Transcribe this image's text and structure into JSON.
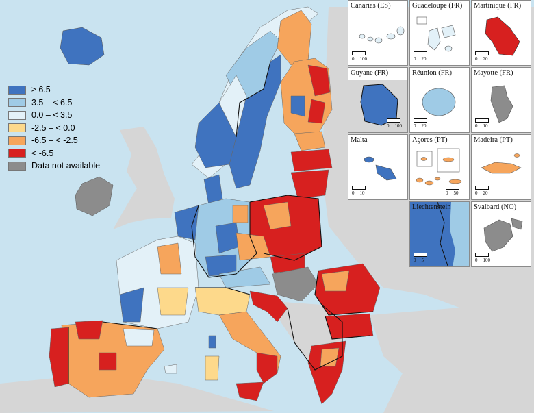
{
  "legend": {
    "items": [
      {
        "label": "≥ 6.5",
        "color": "#3f73bf"
      },
      {
        "label": "3.5 – < 6.5",
        "color": "#9fcbe6"
      },
      {
        "label": "0.0 – < 3.5",
        "color": "#e3f1f8"
      },
      {
        "label": "-2.5 – < 0.0",
        "color": "#fdd98b"
      },
      {
        "label": "-6.5 – < -2.5",
        "color": "#f6a55c"
      },
      {
        "label": "< -6.5",
        "color": "#d7201f"
      },
      {
        "label": "Data not available",
        "color": "#8c8c8c"
      }
    ]
  },
  "insets": [
    {
      "title": "Canarias (ES)",
      "scale": [
        "0",
        "100"
      ]
    },
    {
      "title": "Guadeloupe (FR)",
      "scale": [
        "0",
        "20"
      ]
    },
    {
      "title": "Martinique (FR)",
      "scale": [
        "0",
        "20"
      ]
    },
    {
      "title": "Guyane (FR)",
      "scale": [
        "0",
        "100"
      ]
    },
    {
      "title": "Réunion (FR)",
      "scale": [
        "0",
        "20"
      ]
    },
    {
      "title": "Mayotte (FR)",
      "scale": [
        "0",
        "10"
      ]
    },
    {
      "title": "Malta",
      "scale": [
        "0",
        "10"
      ]
    },
    {
      "title": "Açores (PT)",
      "scale": [
        "0",
        "50"
      ]
    },
    {
      "title": "Madeira (PT)",
      "scale": [
        "0",
        "20"
      ]
    },
    {
      "title": "Liechtenstein",
      "scale": [
        "0",
        "5"
      ]
    },
    {
      "title": "Svalbard (NO)",
      "scale": [
        "0",
        "100"
      ]
    }
  ],
  "colors": {
    "sea": "#c9e3f0",
    "non_eu": "#d6d6d6",
    "border": "#111111"
  }
}
